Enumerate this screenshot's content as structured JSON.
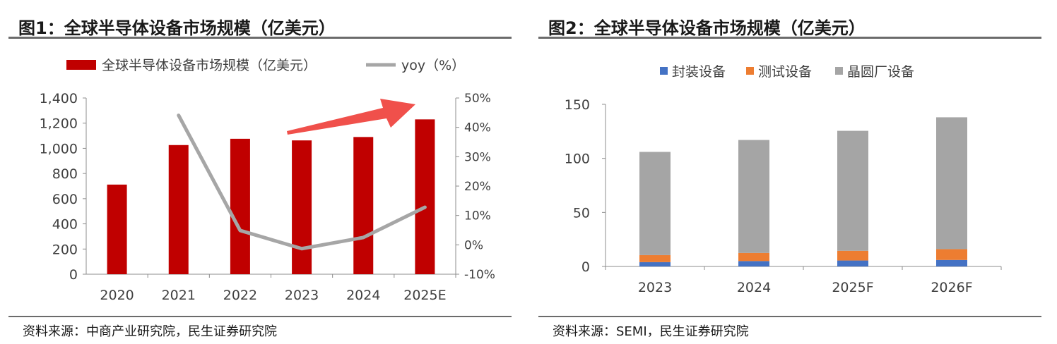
{
  "chart_data": [
    {
      "type": "bar",
      "title": "图1：全球半导体设备市场规模（亿美元）",
      "source": "资料来源：中商产业研究院，民生证券研究院",
      "categories": [
        "2020",
        "2021",
        "2022",
        "2023",
        "2024",
        "2025E"
      ],
      "series": [
        {
          "name": "全球半导体设备市场规模（亿美元）",
          "type": "bar",
          "axis": "left",
          "color": "#c00000",
          "values": [
            712,
            1026,
            1076,
            1063,
            1090,
            1230
          ]
        },
        {
          "name": "yoy（%）",
          "type": "line",
          "axis": "right",
          "color": "#a6a6a6",
          "values": [
            44.1,
            4.9,
            -1.3,
            2.5,
            12.8
          ],
          "x": [
            "2021",
            "2022",
            "2023",
            "2024",
            "2025E"
          ]
        }
      ],
      "ylim": [
        0,
        1400
      ],
      "yticks": [
        "0",
        "200",
        "400",
        "600",
        "800",
        "1,000",
        "1,200",
        "1,400"
      ],
      "y2lim": [
        -10,
        50
      ],
      "y2ticks": [
        "-10%",
        "0%",
        "10%",
        "20%",
        "30%",
        "40%",
        "50%"
      ],
      "grid": false,
      "legend": "top",
      "annotation": "red arrow (trend)"
    },
    {
      "type": "bar",
      "stacked": true,
      "title": "图2：全球半导体设备市场规模（亿美元）",
      "source": "资料来源：SEMI，民生证券研究院",
      "categories": [
        "2023",
        "2024",
        "2025F",
        "2026F"
      ],
      "series": [
        {
          "name": "封装设备",
          "color": "#4472c4",
          "values": [
            4,
            5,
            5.5,
            6
          ]
        },
        {
          "name": "测试设备",
          "color": "#ed7d31",
          "values": [
            6.5,
            7.5,
            9,
            10
          ]
        },
        {
          "name": "晶圆厂设备",
          "color": "#a5a5a5",
          "values": [
            95.5,
            104.5,
            111,
            122
          ]
        }
      ],
      "ylim": [
        0,
        150
      ],
      "yticks": [
        "0",
        "50",
        "100",
        "150"
      ],
      "grid": false,
      "legend": "top"
    }
  ]
}
